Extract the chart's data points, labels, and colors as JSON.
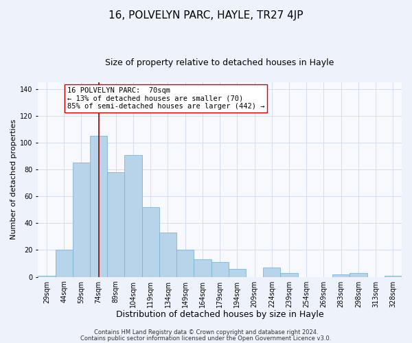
{
  "title": "16, POLVELYN PARC, HAYLE, TR27 4JP",
  "subtitle": "Size of property relative to detached houses in Hayle",
  "xlabel": "Distribution of detached houses by size in Hayle",
  "ylabel": "Number of detached properties",
  "categories": [
    "29sqm",
    "44sqm",
    "59sqm",
    "74sqm",
    "89sqm",
    "104sqm",
    "119sqm",
    "134sqm",
    "149sqm",
    "164sqm",
    "179sqm",
    "194sqm",
    "209sqm",
    "224sqm",
    "239sqm",
    "254sqm",
    "269sqm",
    "283sqm",
    "298sqm",
    "313sqm",
    "328sqm"
  ],
  "values": [
    1,
    20,
    85,
    105,
    78,
    91,
    52,
    33,
    20,
    13,
    11,
    6,
    0,
    7,
    3,
    0,
    0,
    2,
    3,
    0,
    1
  ],
  "bar_color": "#b8d4ea",
  "bar_edge_color": "#7fb3d3",
  "vline_x_index": 3,
  "vline_color": "#990000",
  "ylim": [
    0,
    145
  ],
  "yticks": [
    0,
    20,
    40,
    60,
    80,
    100,
    120,
    140
  ],
  "annotation_line1": "16 POLVELYN PARC:  70sqm",
  "annotation_line2": "← 13% of detached houses are smaller (70)",
  "annotation_line3": "85% of semi-detached houses are larger (442) →",
  "footer_line1": "Contains HM Land Registry data © Crown copyright and database right 2024.",
  "footer_line2": "Contains public sector information licensed under the Open Government Licence v3.0.",
  "background_color": "#eef2fa",
  "plot_background_color": "#f8f9ff",
  "grid_color": "#d0d8e8",
  "title_fontsize": 11,
  "subtitle_fontsize": 9,
  "xlabel_fontsize": 9,
  "ylabel_fontsize": 8,
  "tick_fontsize": 7,
  "annotation_fontsize": 7.5,
  "footer_fontsize": 6
}
